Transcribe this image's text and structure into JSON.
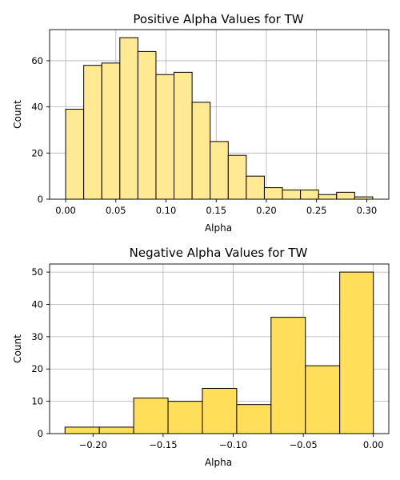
{
  "colors": {
    "positive_bar": "#FFE993",
    "negative_bar": "#FFDF5A",
    "edge": "#000000",
    "grid": "#B0B0B0"
  },
  "chart_data": [
    {
      "type": "bar",
      "title": "Positive Alpha Values for TW",
      "xlabel": "Alpha",
      "ylabel": "Count",
      "grid": true,
      "bin_edges": [
        0.0,
        0.018,
        0.036,
        0.054,
        0.072,
        0.09,
        0.108,
        0.126,
        0.144,
        0.162,
        0.18,
        0.198,
        0.216,
        0.234,
        0.252,
        0.27,
        0.288,
        0.306
      ],
      "values": [
        39,
        58,
        59,
        70,
        64,
        54,
        55,
        42,
        25,
        19,
        10,
        5,
        4,
        4,
        2,
        3,
        1
      ],
      "xlim": [
        -0.016,
        0.322
      ],
      "ylim": [
        0,
        73.5
      ],
      "xticks": [
        0.0,
        0.05,
        0.1,
        0.15,
        0.2,
        0.25,
        0.3
      ],
      "xtick_labels": [
        "0.00",
        "0.05",
        "0.10",
        "0.15",
        "0.20",
        "0.25",
        "0.30"
      ],
      "yticks": [
        0,
        20,
        40,
        60
      ],
      "ytick_labels": [
        "0",
        "20",
        "40",
        "60"
      ]
    },
    {
      "type": "bar",
      "title": "Negative Alpha Values for TW",
      "xlabel": "Alpha",
      "ylabel": "Count",
      "grid": true,
      "bin_edges": [
        -0.22,
        -0.1955,
        -0.171,
        -0.1465,
        -0.122,
        -0.0975,
        -0.073,
        -0.0485,
        -0.024,
        0.0
      ],
      "values": [
        2,
        2,
        11,
        10,
        14,
        9,
        36,
        21,
        50
      ],
      "xlim": [
        -0.231,
        0.011
      ],
      "ylim": [
        0,
        52.5
      ],
      "xticks": [
        -0.2,
        -0.15,
        -0.1,
        -0.05,
        0.0
      ],
      "xtick_labels": [
        "−0.20",
        "−0.15",
        "−0.10",
        "−0.05",
        "0.00"
      ],
      "yticks": [
        0,
        10,
        20,
        30,
        40,
        50
      ],
      "ytick_labels": [
        "0",
        "10",
        "20",
        "30",
        "40",
        "50"
      ]
    }
  ]
}
